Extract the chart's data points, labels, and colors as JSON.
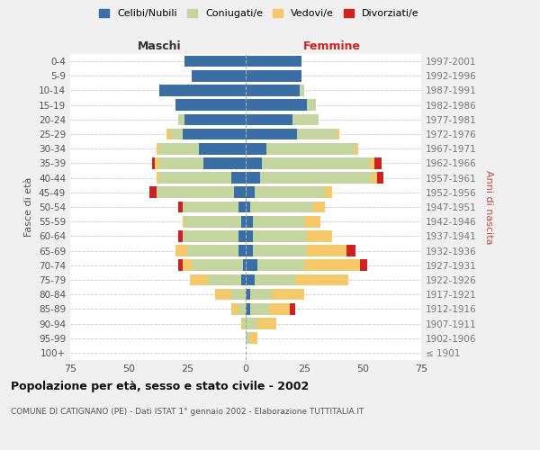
{
  "age_groups": [
    "100+",
    "95-99",
    "90-94",
    "85-89",
    "80-84",
    "75-79",
    "70-74",
    "65-69",
    "60-64",
    "55-59",
    "50-54",
    "45-49",
    "40-44",
    "35-39",
    "30-34",
    "25-29",
    "20-24",
    "15-19",
    "10-14",
    "5-9",
    "0-4"
  ],
  "birth_years": [
    "≤ 1901",
    "1902-1906",
    "1907-1911",
    "1912-1916",
    "1917-1921",
    "1922-1926",
    "1927-1931",
    "1932-1936",
    "1937-1941",
    "1942-1946",
    "1947-1951",
    "1952-1956",
    "1957-1961",
    "1962-1966",
    "1967-1971",
    "1972-1976",
    "1977-1981",
    "1982-1986",
    "1987-1991",
    "1992-1996",
    "1997-2001"
  ],
  "male": {
    "celibi": [
      0,
      0,
      0,
      0,
      0,
      2,
      1,
      3,
      3,
      2,
      3,
      5,
      6,
      18,
      20,
      27,
      26,
      30,
      37,
      23,
      26
    ],
    "coniugati": [
      0,
      0,
      1,
      3,
      6,
      14,
      22,
      22,
      24,
      24,
      24,
      33,
      31,
      19,
      17,
      5,
      3,
      0,
      0,
      0,
      0
    ],
    "vedovi": [
      0,
      0,
      1,
      3,
      7,
      8,
      4,
      5,
      0,
      1,
      0,
      0,
      1,
      2,
      1,
      2,
      0,
      0,
      0,
      0,
      0
    ],
    "divorziati": [
      0,
      0,
      0,
      0,
      0,
      0,
      2,
      0,
      2,
      0,
      2,
      3,
      0,
      1,
      0,
      0,
      0,
      0,
      0,
      0,
      0
    ]
  },
  "female": {
    "nubili": [
      0,
      0,
      0,
      2,
      2,
      4,
      5,
      3,
      3,
      3,
      2,
      4,
      6,
      7,
      9,
      22,
      20,
      26,
      23,
      24,
      24
    ],
    "coniugate": [
      0,
      2,
      5,
      8,
      9,
      17,
      20,
      23,
      23,
      22,
      27,
      30,
      48,
      46,
      38,
      17,
      11,
      4,
      2,
      0,
      0
    ],
    "vedove": [
      0,
      3,
      8,
      9,
      14,
      23,
      24,
      17,
      11,
      7,
      5,
      3,
      2,
      2,
      1,
      1,
      0,
      0,
      0,
      0,
      0
    ],
    "divorziate": [
      0,
      0,
      0,
      2,
      0,
      0,
      3,
      4,
      0,
      0,
      0,
      0,
      3,
      3,
      0,
      0,
      0,
      0,
      0,
      0,
      0
    ]
  },
  "colors": {
    "celibi": "#3a6ea5",
    "coniugati": "#c5d5a0",
    "vedovi": "#f5c96a",
    "divorziati": "#cc2222"
  },
  "title": "Popolazione per età, sesso e stato civile - 2002",
  "subtitle": "COMUNE DI CATIGNANO (PE) - Dati ISTAT 1° gennaio 2002 - Elaborazione TUTTITALIA.IT",
  "xlabel_left": "Maschi",
  "xlabel_right": "Femmine",
  "ylabel_left": "Fasce di età",
  "ylabel_right": "Anni di nascita",
  "xlim": 75,
  "background_color": "#f0f0f0",
  "plot_bg": "#ffffff",
  "legend_labels": [
    "Celibi/Nubili",
    "Coniugati/e",
    "Vedovi/e",
    "Divorziati/e"
  ]
}
